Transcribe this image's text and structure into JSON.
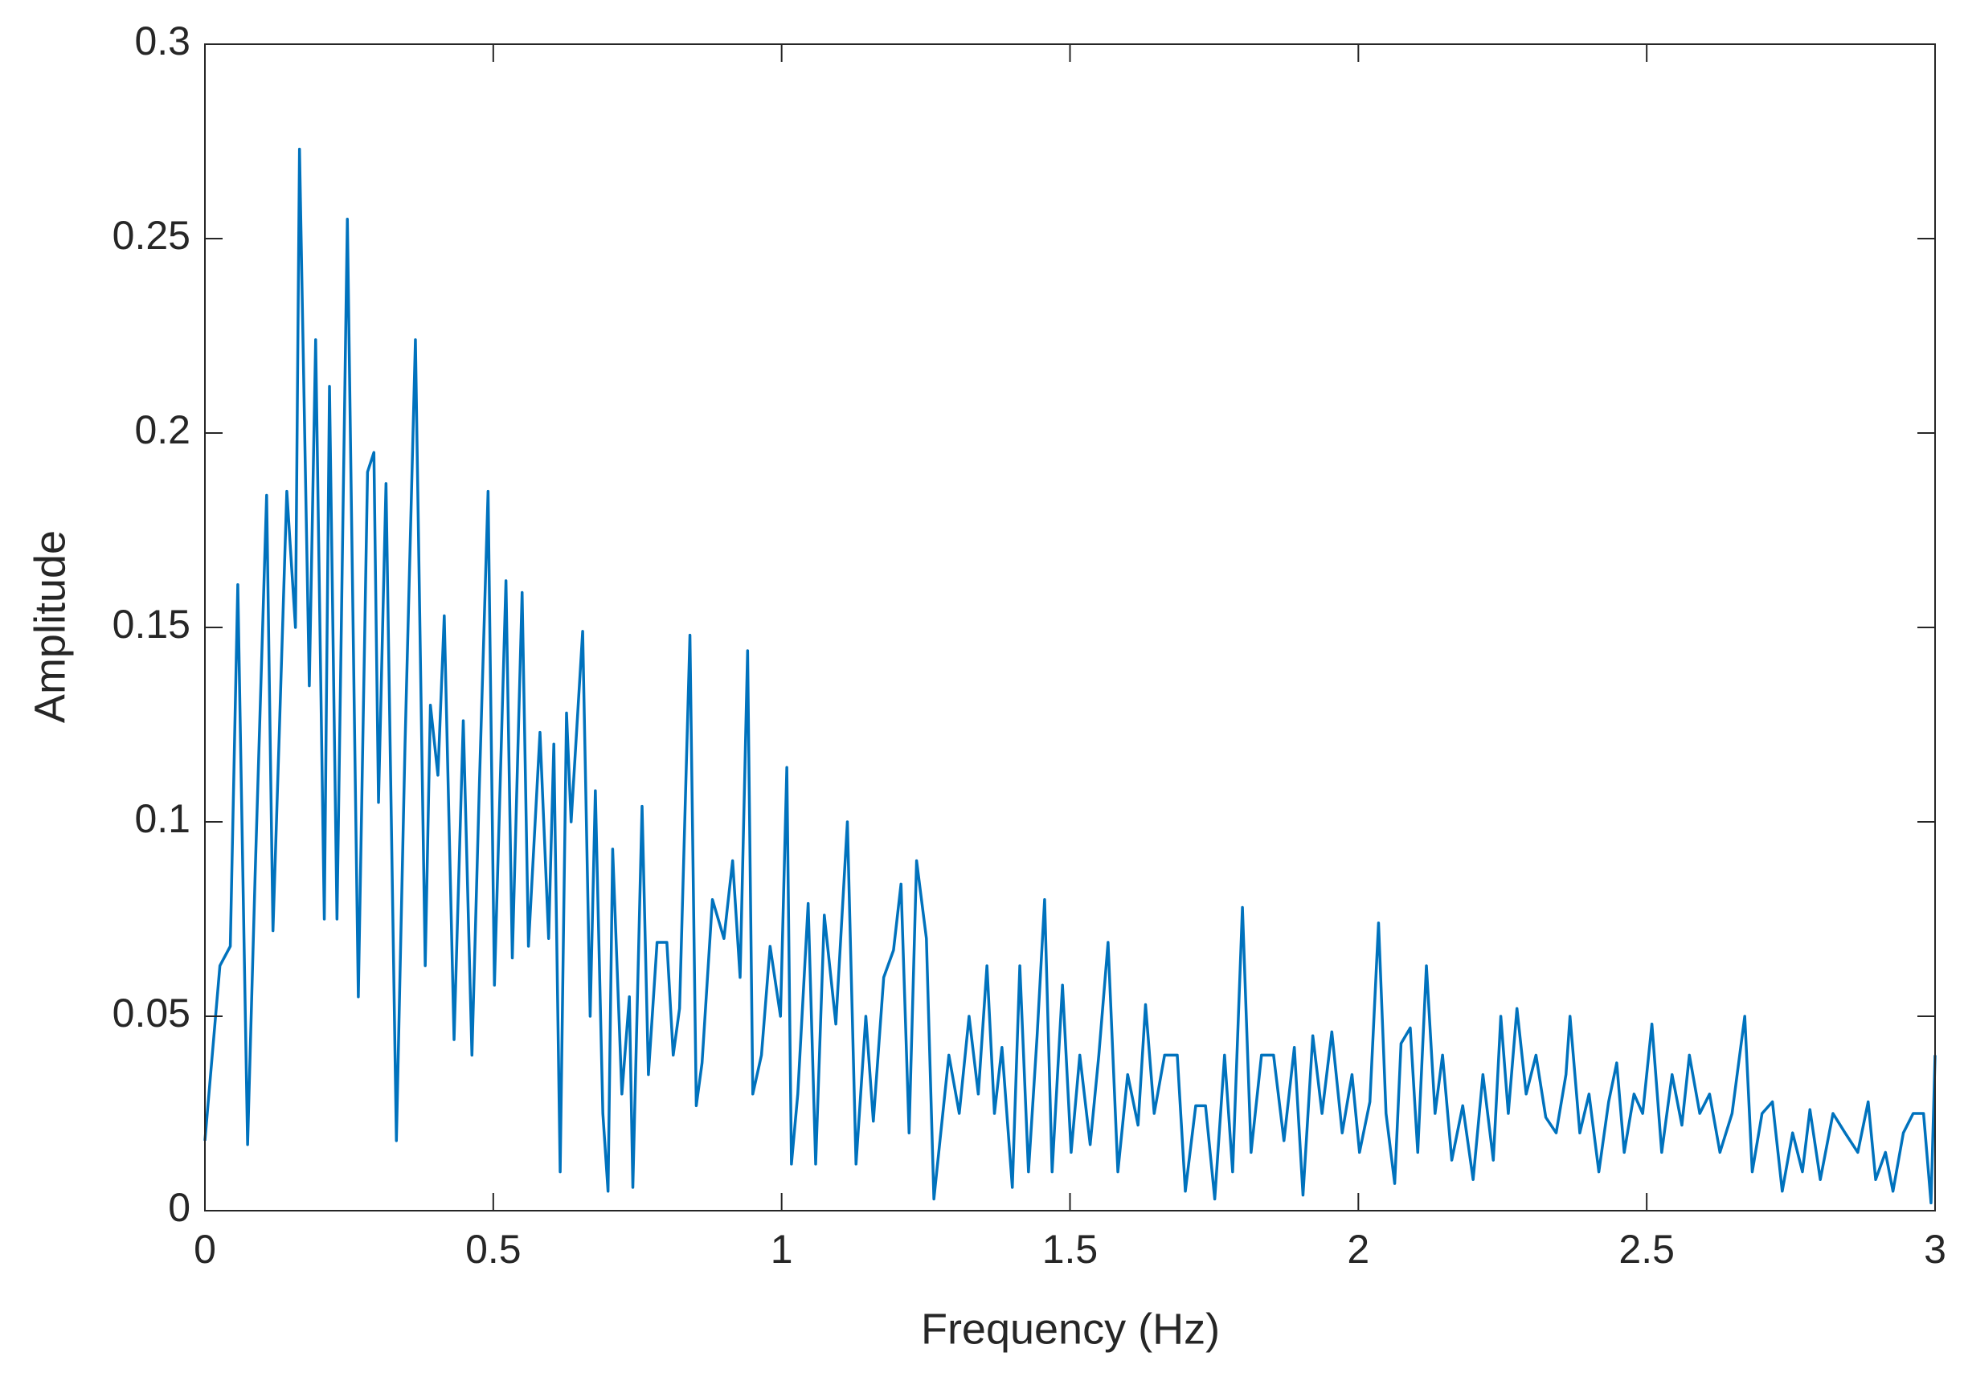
{
  "chart_data": {
    "type": "line",
    "x_label": "Frequency (Hz)",
    "y_label": "Amplitude",
    "xlim": [
      0,
      3
    ],
    "ylim": [
      0,
      0.3
    ],
    "xticks": [
      0,
      0.5,
      1,
      1.5,
      2,
      2.5,
      3
    ],
    "yticks": [
      0,
      0.05,
      0.1,
      0.15,
      0.2,
      0.25,
      0.3
    ],
    "grid": false,
    "series": [
      {
        "color": "#0072bd",
        "x": [
          0,
          0.026,
          0.044,
          0.057,
          0.074,
          0.087,
          0.107,
          0.118,
          0.129,
          0.142,
          0.157,
          0.164,
          0.181,
          0.192,
          0.207,
          0.216,
          0.229,
          0.247,
          0.266,
          0.282,
          0.293,
          0.301,
          0.314,
          0.332,
          0.347,
          0.365,
          0.382,
          0.391,
          0.404,
          0.415,
          0.432,
          0.448,
          0.463,
          0.476,
          0.491,
          0.502,
          0.522,
          0.533,
          0.55,
          0.561,
          0.581,
          0.596,
          0.605,
          0.616,
          0.627,
          0.635,
          0.655,
          0.668,
          0.677,
          0.69,
          0.699,
          0.707,
          0.723,
          0.736,
          0.742,
          0.758,
          0.769,
          0.784,
          0.801,
          0.812,
          0.823,
          0.841,
          0.852,
          0.862,
          0.88,
          0.9,
          0.915,
          0.928,
          0.941,
          0.95,
          0.965,
          0.98,
          0.998,
          1.009,
          1.017,
          1.028,
          1.046,
          1.059,
          1.074,
          1.094,
          1.114,
          1.129,
          1.146,
          1.159,
          1.177,
          1.194,
          1.207,
          1.221,
          1.234,
          1.251,
          1.264,
          1.29,
          1.308,
          1.325,
          1.341,
          1.356,
          1.369,
          1.382,
          1.4,
          1.413,
          1.428,
          1.443,
          1.456,
          1.469,
          1.487,
          1.502,
          1.517,
          1.535,
          1.55,
          1.566,
          1.583,
          1.6,
          1.618,
          1.631,
          1.646,
          1.664,
          1.686,
          1.7,
          1.718,
          1.735,
          1.751,
          1.768,
          1.782,
          1.799,
          1.814,
          1.832,
          1.853,
          1.871,
          1.889,
          1.904,
          1.921,
          1.937,
          1.954,
          1.972,
          1.989,
          2.002,
          2.02,
          2.035,
          2.048,
          2.063,
          2.074,
          2.09,
          2.103,
          2.118,
          2.133,
          2.146,
          2.162,
          2.181,
          2.199,
          2.216,
          2.234,
          2.247,
          2.26,
          2.275,
          2.291,
          2.308,
          2.325,
          2.343,
          2.36,
          2.367,
          2.384,
          2.4,
          2.417,
          2.434,
          2.448,
          2.461,
          2.478,
          2.493,
          2.509,
          2.526,
          2.544,
          2.561,
          2.574,
          2.592,
          2.609,
          2.627,
          2.648,
          2.67,
          2.683,
          2.7,
          2.718,
          2.735,
          2.753,
          2.77,
          2.783,
          2.801,
          2.823,
          2.844,
          2.866,
          2.884,
          2.897,
          2.914,
          2.927,
          2.945,
          2.962,
          2.98,
          2.993,
          3.0
        ],
        "values": [
          0.018,
          0.063,
          0.068,
          0.161,
          0.017,
          0.086,
          0.184,
          0.072,
          0.123,
          0.185,
          0.15,
          0.273,
          0.135,
          0.224,
          0.075,
          0.212,
          0.075,
          0.255,
          0.055,
          0.19,
          0.195,
          0.105,
          0.187,
          0.018,
          0.12,
          0.224,
          0.063,
          0.13,
          0.112,
          0.153,
          0.044,
          0.126,
          0.04,
          0.11,
          0.185,
          0.058,
          0.162,
          0.065,
          0.159,
          0.068,
          0.123,
          0.07,
          0.12,
          0.01,
          0.128,
          0.1,
          0.149,
          0.05,
          0.108,
          0.025,
          0.005,
          0.093,
          0.03,
          0.055,
          0.006,
          0.104,
          0.035,
          0.069,
          0.069,
          0.04,
          0.052,
          0.148,
          0.027,
          0.038,
          0.08,
          0.07,
          0.09,
          0.06,
          0.144,
          0.03,
          0.04,
          0.068,
          0.05,
          0.114,
          0.012,
          0.03,
          0.079,
          0.012,
          0.076,
          0.048,
          0.1,
          0.012,
          0.05,
          0.023,
          0.06,
          0.067,
          0.084,
          0.02,
          0.09,
          0.07,
          0.003,
          0.04,
          0.025,
          0.05,
          0.03,
          0.063,
          0.025,
          0.042,
          0.006,
          0.063,
          0.01,
          0.045,
          0.08,
          0.01,
          0.058,
          0.015,
          0.04,
          0.017,
          0.04,
          0.069,
          0.01,
          0.035,
          0.022,
          0.053,
          0.025,
          0.04,
          0.04,
          0.005,
          0.027,
          0.027,
          0.003,
          0.04,
          0.01,
          0.078,
          0.015,
          0.04,
          0.04,
          0.018,
          0.042,
          0.004,
          0.045,
          0.025,
          0.046,
          0.02,
          0.035,
          0.015,
          0.028,
          0.074,
          0.025,
          0.007,
          0.043,
          0.047,
          0.015,
          0.063,
          0.025,
          0.04,
          0.013,
          0.027,
          0.008,
          0.035,
          0.013,
          0.05,
          0.025,
          0.052,
          0.03,
          0.04,
          0.024,
          0.02,
          0.035,
          0.05,
          0.02,
          0.03,
          0.01,
          0.028,
          0.038,
          0.015,
          0.03,
          0.025,
          0.048,
          0.015,
          0.035,
          0.022,
          0.04,
          0.025,
          0.03,
          0.015,
          0.025,
          0.05,
          0.01,
          0.025,
          0.028,
          0.005,
          0.02,
          0.01,
          0.026,
          0.008,
          0.025,
          0.02,
          0.015,
          0.028,
          0.008,
          0.015,
          0.005,
          0.02,
          0.025,
          0.025,
          0.002,
          0.04
        ]
      }
    ]
  }
}
